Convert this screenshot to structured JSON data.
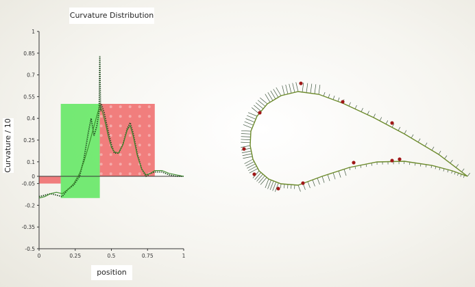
{
  "chart_data": {
    "type": "line",
    "title": "Curvature Distribution",
    "xlabel": "position",
    "ylabel": "Curvature / 10",
    "xlim": [
      0,
      1
    ],
    "ylim": [
      -0.5,
      1
    ],
    "x_ticks": [
      "0",
      "0.25",
      "0.5",
      "0.75",
      "1"
    ],
    "x_tick_values": [
      0,
      0.25,
      0.5,
      0.75,
      1
    ],
    "y_ticks": [
      "1",
      "0.85",
      "0.7",
      "0.55",
      "0.4",
      "0.25",
      "0.1",
      "0",
      "-0.05",
      "-0.2",
      "-0.35",
      "-0.5"
    ],
    "y_tick_values": [
      1,
      0.85,
      0.7,
      0.55,
      0.4,
      0.25,
      0.1,
      0,
      -0.05,
      -0.2,
      -0.35,
      -0.5
    ],
    "regions": [
      {
        "x": [
          0,
          0.15
        ],
        "y": [
          -0.05,
          0
        ],
        "color": "#f07070"
      },
      {
        "x": [
          0.15,
          0.42
        ],
        "y": [
          -0.15,
          0.5
        ],
        "color": "#66e866"
      },
      {
        "x": [
          0.42,
          0.8
        ],
        "y": [
          0,
          0.5
        ],
        "color": "#f07070"
      }
    ],
    "series": [
      {
        "style": "dotted",
        "color": "#1f4a1f",
        "x": [
          0,
          0.04,
          0.08,
          0.12,
          0.16,
          0.2,
          0.24,
          0.28,
          0.31,
          0.34,
          0.36,
          0.38,
          0.4,
          0.415,
          0.42,
          0.425,
          0.43,
          0.45,
          0.48,
          0.5,
          0.52,
          0.55,
          0.58,
          0.61,
          0.63,
          0.65,
          0.68,
          0.71,
          0.74,
          0.77,
          0.8,
          0.85,
          0.9,
          0.95,
          1.0
        ],
        "y": [
          -0.14,
          -0.13,
          -0.12,
          -0.13,
          -0.14,
          -0.09,
          -0.06,
          0.0,
          0.12,
          0.3,
          0.4,
          0.28,
          0.35,
          0.45,
          0.83,
          0.45,
          0.5,
          0.44,
          0.3,
          0.22,
          0.16,
          0.16,
          0.22,
          0.33,
          0.37,
          0.3,
          0.15,
          0.05,
          0.0,
          0.02,
          0.03,
          0.03,
          0.01,
          0.0,
          0.0
        ]
      },
      {
        "style": "solid",
        "color": "#3a8a2a",
        "x": [
          0,
          0.04,
          0.08,
          0.12,
          0.16,
          0.2,
          0.24,
          0.28,
          0.31,
          0.34,
          0.37,
          0.4,
          0.42,
          0.44,
          0.46,
          0.48,
          0.5,
          0.52,
          0.55,
          0.58,
          0.61,
          0.63,
          0.65,
          0.68,
          0.71,
          0.74,
          0.77,
          0.8,
          0.85,
          0.9,
          0.95,
          1.0
        ],
        "y": [
          -0.15,
          -0.14,
          -0.12,
          -0.11,
          -0.12,
          -0.09,
          -0.05,
          0.02,
          0.1,
          0.2,
          0.31,
          0.42,
          0.49,
          0.44,
          0.36,
          0.27,
          0.2,
          0.17,
          0.16,
          0.22,
          0.32,
          0.35,
          0.28,
          0.14,
          0.05,
          0.01,
          0.02,
          0.04,
          0.04,
          0.02,
          0.01,
          0.0
        ]
      }
    ]
  },
  "airfoil": {
    "curve_color": "#6b8a2a",
    "comb_color": "#1f3a1f",
    "point_color": "#a01818"
  }
}
